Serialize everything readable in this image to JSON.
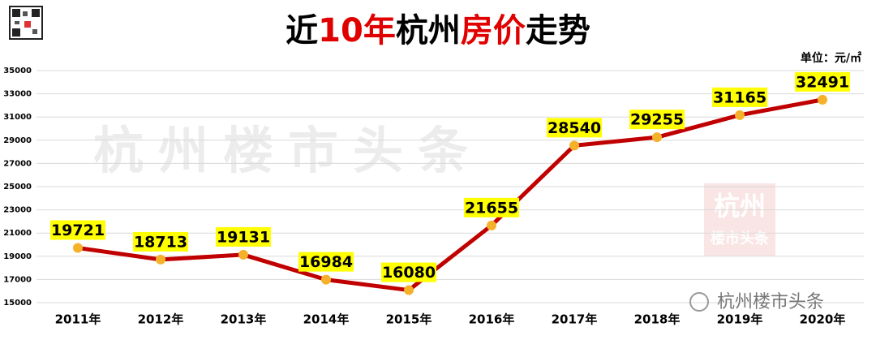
{
  "chart_data": {
    "type": "line",
    "title_parts": [
      "近",
      "10年",
      "杭州",
      "房价",
      "走势"
    ],
    "title_colors": [
      "#000000",
      "#e00000",
      "#000000",
      "#e00000",
      "#000000"
    ],
    "unit": "单位：元/㎡",
    "watermark": "杭州楼市头条",
    "logo_text": [
      "杭州",
      "楼市头条"
    ],
    "footer": "杭州楼市头条",
    "categories": [
      "2011年",
      "2012年",
      "2013年",
      "2014年",
      "2015年",
      "2016年",
      "2017年",
      "2018年",
      "2019年",
      "2020年"
    ],
    "series": [
      {
        "color": "#c00000",
        "marker_color": "#f5b12a",
        "label_bg": "#ffff00",
        "values": [
          19721,
          18713,
          19131,
          16984,
          16080,
          21655,
          28540,
          29255,
          31165,
          32491
        ]
      }
    ],
    "ylim": [
      15000,
      35000
    ],
    "yticks": [
      15000,
      17000,
      19000,
      21000,
      23000,
      25000,
      27000,
      29000,
      31000,
      33000,
      35000
    ],
    "grid": true
  }
}
